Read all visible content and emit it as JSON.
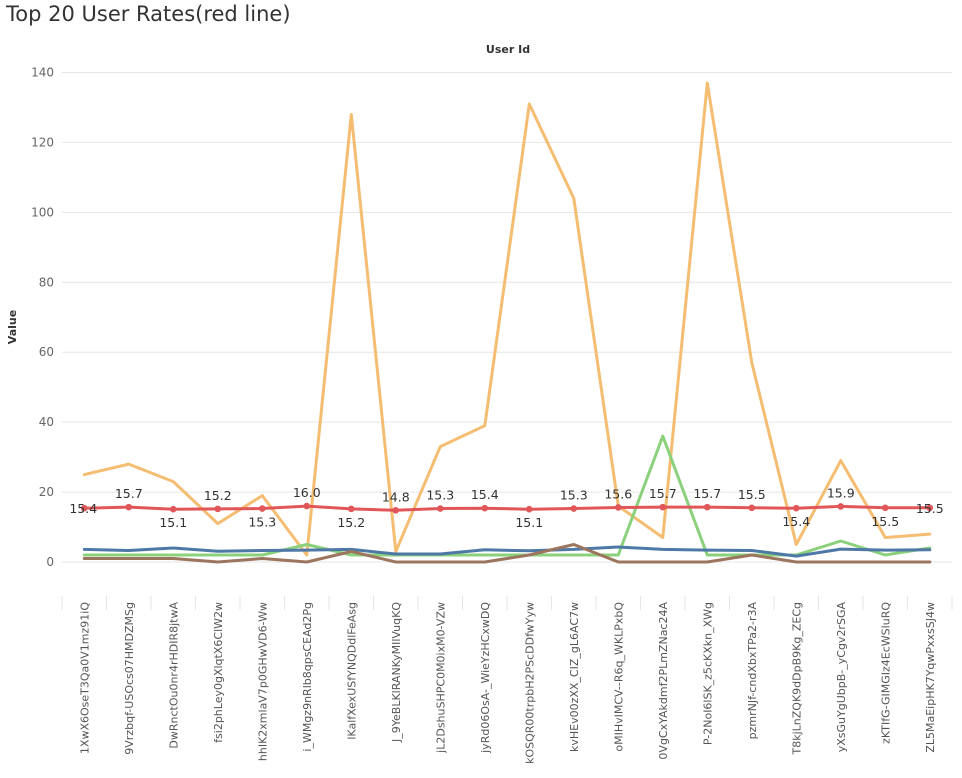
{
  "title": "Top 20 User Rates(red line)",
  "colors": {
    "red": "#e15759",
    "orange": "#f5bd72",
    "green": "#8bd17c",
    "blue": "#4e79a7",
    "brown": "#9c755f",
    "grid": "#e6e6e6",
    "axis_text": "#666666",
    "label_text": "#333333"
  },
  "chart_data": {
    "type": "line",
    "xlabel": "User Id",
    "ylabel": "Value",
    "ylim": [
      -8,
      143
    ],
    "yticks": [
      0,
      20,
      40,
      60,
      80,
      100,
      120,
      140
    ],
    "grid": "horizontal",
    "categories": [
      "1XwX6OseT3Qa0V1mz91iQ",
      "9Vrzbqf-USOcs07HMDZMSg",
      "DwRnctOu0nr4rHDIR8jtwA",
      "fsi2phLey0gXlqtX6ClW2w",
      "hhIK2xmlaV7p0GHwVD6-Ww",
      "i_WMgz9nRlb8qpsCEAd2Pg",
      "lKalfXexUSfYNQDdlFeAsg",
      "J_9YeBLKlRANKyMIlVuqKQ",
      "jL2DshuSHPC0M0ixM0-VZw",
      "jyRd06OsA-_WieYzHCxwDQ",
      "kOSQR00trpbH2PScDDfwYyw",
      "kvHEv00zXX_CIZ_gL6AC7w",
      "oMIHvIMCV--R6q_WKLPxbQ",
      "0VgCxYAkdmf2PLmZNac24A",
      "P-2NoI6lSK_z5cKXkn_XWg",
      "pzmrNJf-cndXbxTPa2-r3A",
      "T8kjLnZQK9dDpB9Kg_ZECg",
      "yXsGuYgUbpB-_yCgv2rSGA",
      "zKTIfG-GIMGIz4EcWSluRQ",
      "ZL5MaEipHK7YqwPxxsSJ4w"
    ],
    "series": [
      {
        "color": "orange",
        "values": [
          25,
          28,
          23,
          11,
          19,
          2,
          128,
          3,
          33,
          39,
          131,
          104,
          16,
          7,
          137,
          57,
          5,
          29,
          7,
          8
        ]
      },
      {
        "color": "green",
        "values": [
          2,
          2,
          2,
          2,
          2,
          5,
          2,
          2,
          2,
          2,
          2,
          2,
          2,
          36,
          2,
          2,
          2,
          6,
          2,
          4
        ]
      },
      {
        "color": "blue",
        "values": [
          3.6,
          3.3,
          4.0,
          3.1,
          3.3,
          3.4,
          3.6,
          2.3,
          2.3,
          3.5,
          3.2,
          3.6,
          4.3,
          3.6,
          3.4,
          3.3,
          1.7,
          3.7,
          3.4,
          3.5
        ]
      },
      {
        "color": "brown",
        "values": [
          1,
          1,
          1,
          0,
          1,
          0,
          3,
          0,
          0,
          0,
          2,
          5,
          0,
          0,
          0,
          2,
          0,
          0,
          0,
          0
        ]
      },
      {
        "color": "red",
        "values": [
          15.4,
          15.7,
          15.1,
          15.2,
          15.3,
          16.0,
          15.2,
          14.8,
          15.3,
          15.4,
          15.1,
          15.3,
          15.6,
          15.7,
          15.7,
          15.5,
          15.4,
          15.9,
          15.5,
          15.5
        ],
        "labels": [
          "15.4",
          "15.7",
          "15.1",
          "15.2",
          "15.3",
          "16.0",
          "15.2",
          "14.8",
          "15.3",
          "15.4",
          "15.1",
          "15.3",
          "15.6",
          "15.7",
          "15.7",
          "15.5",
          "15.4",
          "15.9",
          "15.5",
          "15.5"
        ]
      }
    ]
  }
}
